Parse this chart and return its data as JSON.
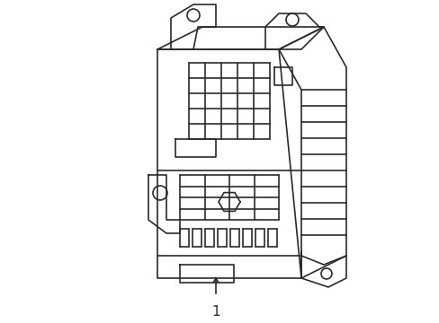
{
  "background_color": "#ffffff",
  "line_color": "#2a2a2a",
  "line_width": 1.2,
  "label_text": "1",
  "title": "",
  "figsize": [
    4.89,
    3.6
  ],
  "dpi": 100
}
